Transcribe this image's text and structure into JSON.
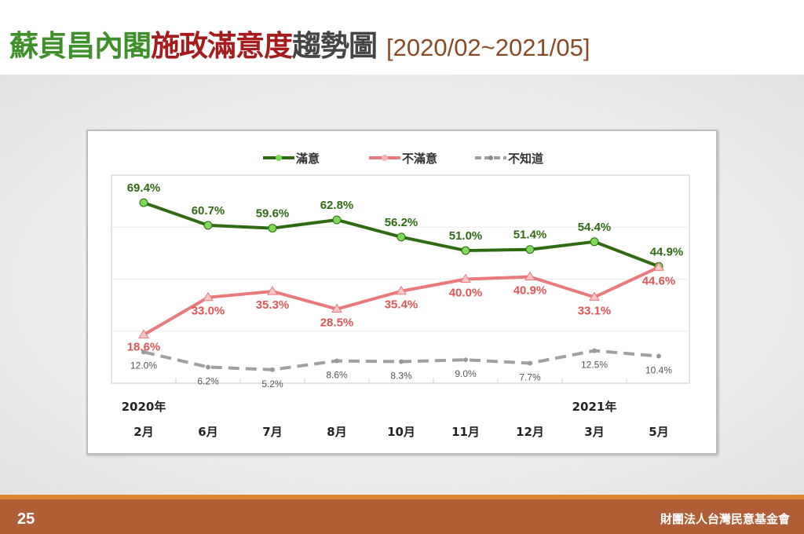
{
  "title": {
    "part1": "蘇貞昌內閣",
    "part2": "施政滿意度",
    "part3": "趨勢圖",
    "range": "[2020/02~2021/05]"
  },
  "footer": {
    "page": "25",
    "org": "財團法人台灣民意基金會"
  },
  "colors": {
    "satisfied": "#2e6b12",
    "dissatisfied": "#e87a7a",
    "unknown": "#a0a0a0"
  },
  "chart_data": {
    "type": "line",
    "categories": [
      "2月",
      "6月",
      "7月",
      "8月",
      "10月",
      "11月",
      "12月",
      "3月",
      "5月"
    ],
    "year_labels": [
      {
        "index": 0,
        "label": "2020年"
      },
      {
        "index": 7,
        "label": "2021年"
      }
    ],
    "ylim": [
      0,
      80
    ],
    "grid": true,
    "legend_position": "top-center",
    "series": [
      {
        "name": "滿意",
        "values": [
          69.4,
          60.7,
          59.6,
          62.8,
          56.2,
          51.0,
          51.4,
          54.4,
          44.9
        ],
        "labels": [
          "69.4%",
          "60.7%",
          "59.6%",
          "62.8%",
          "56.2%",
          "51.0%",
          "51.4%",
          "54.4%",
          "44.9%"
        ]
      },
      {
        "name": "不滿意",
        "values": [
          18.6,
          33.0,
          35.3,
          28.5,
          35.4,
          40.0,
          40.9,
          33.1,
          44.6
        ],
        "labels": [
          "18.6%",
          "33.0%",
          "35.3%",
          "28.5%",
          "35.4%",
          "40.0%",
          "40.9%",
          "33.1%",
          "44.6%"
        ]
      },
      {
        "name": "不知道",
        "values": [
          12.0,
          6.2,
          5.2,
          8.6,
          8.3,
          9.0,
          7.7,
          12.5,
          10.4
        ],
        "labels": [
          "12.0%",
          "6.2%",
          "5.2%",
          "8.6%",
          "8.3%",
          "9.0%",
          "7.7%",
          "12.5%",
          "10.4%"
        ]
      }
    ]
  }
}
